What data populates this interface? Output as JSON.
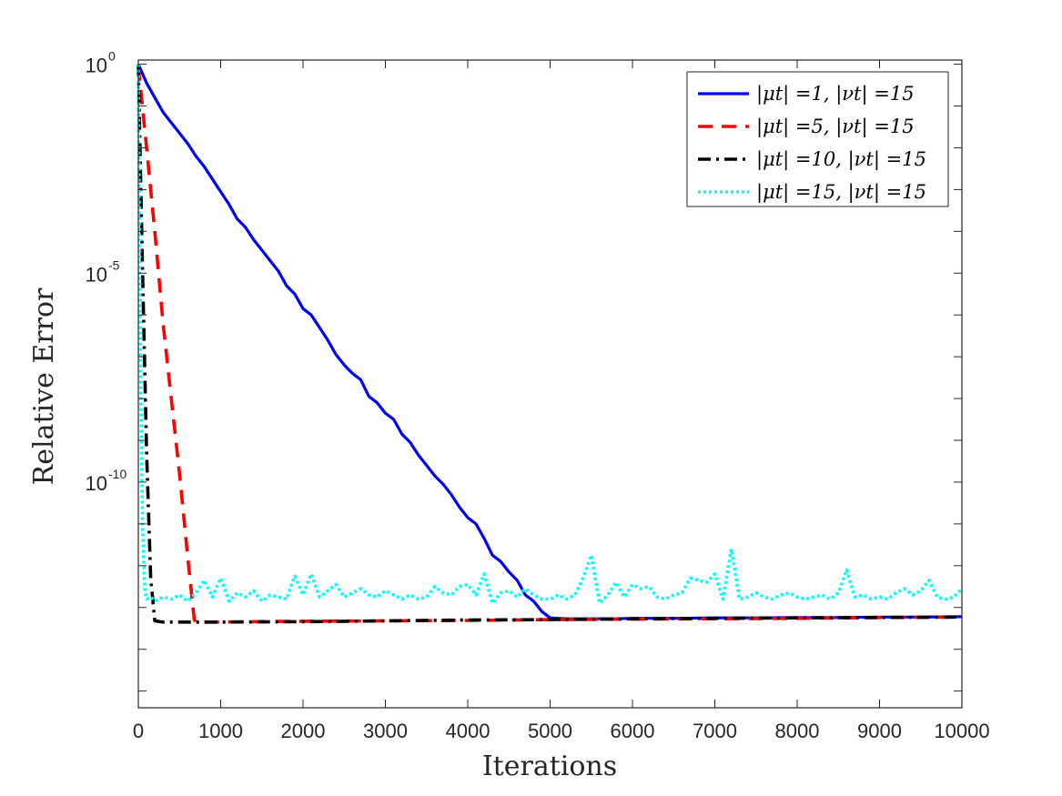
{
  "chart_data": {
    "type": "line",
    "xlabel": "Iterations",
    "ylabel": "Relative Error",
    "xlim": [
      0,
      10000
    ],
    "ylim_log10": [
      -15.4,
      0.1
    ],
    "yscale": "log",
    "x_ticks": [
      "0",
      "1000",
      "2000",
      "3000",
      "4000",
      "5000",
      "6000",
      "7000",
      "8000",
      "9000",
      "10000"
    ],
    "y_ticks": [
      {
        "base": "10",
        "exp": "0",
        "value_log10": 0
      },
      {
        "base": "10",
        "exp": "-5",
        "value_log10": -5
      },
      {
        "base": "10",
        "exp": "-10",
        "value_log10": -10
      }
    ],
    "legend_position": "top-right",
    "series": [
      {
        "name": "|μt| =1, |νt| =15",
        "color": "#0000ff",
        "dash": "solid",
        "x": [
          0,
          100,
          200,
          300,
          400,
          500,
          600,
          700,
          800,
          900,
          1000,
          1100,
          1200,
          1300,
          1400,
          1500,
          1600,
          1700,
          1800,
          1900,
          2000,
          2100,
          2200,
          2300,
          2400,
          2500,
          2600,
          2700,
          2800,
          2900,
          3000,
          3100,
          3200,
          3300,
          3400,
          3500,
          3600,
          3700,
          3800,
          3900,
          4000,
          4100,
          4200,
          4300,
          4400,
          4500,
          4600,
          4700,
          4800,
          4900,
          5000,
          5200,
          5400,
          5600,
          5800,
          6000,
          6500,
          7000,
          7500,
          8000,
          8500,
          9000,
          9500,
          10000
        ],
        "y_log10": [
          0,
          -0.45,
          -0.8,
          -1.15,
          -1.4,
          -1.65,
          -1.9,
          -2.2,
          -2.45,
          -2.75,
          -3.05,
          -3.35,
          -3.7,
          -3.9,
          -4.2,
          -4.45,
          -4.7,
          -4.95,
          -5.3,
          -5.5,
          -5.85,
          -6.0,
          -6.3,
          -6.6,
          -6.95,
          -7.2,
          -7.4,
          -7.55,
          -7.95,
          -8.1,
          -8.35,
          -8.5,
          -8.85,
          -9.05,
          -9.35,
          -9.6,
          -9.85,
          -10.05,
          -10.3,
          -10.6,
          -10.85,
          -11.0,
          -11.35,
          -11.75,
          -11.9,
          -12.15,
          -12.35,
          -12.7,
          -12.85,
          -13.1,
          -13.25,
          -13.27,
          -13.27,
          -13.27,
          -13.27,
          -13.26,
          -13.26,
          -13.25,
          -13.25,
          -13.24,
          -13.24,
          -13.23,
          -13.23,
          -13.22
        ]
      },
      {
        "name": "|μt| =5, |νt| =15",
        "color": "#ff0000",
        "dash": "dashed",
        "x": [
          0,
          100,
          200,
          300,
          400,
          500,
          600,
          680,
          700,
          1000,
          2000,
          3000,
          4000,
          5000,
          6000,
          7000,
          8000,
          9000,
          10000
        ],
        "y_log10": [
          -0.05,
          -2.0,
          -4.0,
          -6.2,
          -8.0,
          -9.8,
          -11.8,
          -13.3,
          -13.35,
          -13.35,
          -13.33,
          -13.32,
          -13.31,
          -13.29,
          -13.28,
          -13.27,
          -13.26,
          -13.24,
          -13.23
        ]
      },
      {
        "name": "|μt| =10, |νt| =15",
        "color": "#000000",
        "dash": "dashdot",
        "x": [
          0,
          50,
          100,
          150,
          200,
          300,
          1000,
          2000,
          3000,
          4000,
          5000,
          6000,
          7000,
          8000,
          9000,
          10000
        ],
        "y_log10": [
          0,
          -4.8,
          -9.3,
          -12.3,
          -13.32,
          -13.35,
          -13.35,
          -13.34,
          -13.32,
          -13.3,
          -13.29,
          -13.27,
          -13.26,
          -13.25,
          -13.24,
          -13.23
        ]
      },
      {
        "name": "|μt| =15, |νt| =15",
        "color": "#00ffff",
        "dash": "dotted",
        "x": [
          0,
          20,
          50,
          80,
          100,
          150,
          200,
          300,
          400,
          500,
          600,
          700,
          800,
          900,
          1000,
          1100,
          1200,
          1300,
          1400,
          1500,
          1600,
          1700,
          1800,
          1900,
          2000,
          2100,
          2200,
          2300,
          2400,
          2500,
          2600,
          2700,
          2800,
          2900,
          3000,
          3100,
          3200,
          3300,
          3400,
          3500,
          3600,
          3700,
          3800,
          3900,
          4000,
          4100,
          4200,
          4300,
          4400,
          4500,
          4600,
          4700,
          4800,
          4900,
          5000,
          5100,
          5200,
          5300,
          5400,
          5500,
          5600,
          5700,
          5800,
          5900,
          6000,
          6100,
          6200,
          6300,
          6400,
          6500,
          6600,
          6700,
          6800,
          6900,
          7000,
          7100,
          7200,
          7300,
          7400,
          7500,
          7600,
          7700,
          7800,
          7900,
          8000,
          8100,
          8200,
          8300,
          8400,
          8500,
          8600,
          8700,
          8800,
          8900,
          9000,
          9100,
          9200,
          9300,
          9400,
          9500,
          9600,
          9700,
          9800,
          9900,
          10000
        ],
        "y_log10": [
          0,
          -6.0,
          -11.0,
          -12.6,
          -12.8,
          -12.75,
          -12.85,
          -12.75,
          -12.8,
          -12.7,
          -12.85,
          -12.65,
          -12.35,
          -12.75,
          -12.3,
          -12.85,
          -12.65,
          -12.75,
          -12.6,
          -12.85,
          -12.7,
          -12.75,
          -12.8,
          -12.25,
          -12.7,
          -12.2,
          -12.75,
          -12.6,
          -12.45,
          -12.75,
          -12.65,
          -12.55,
          -12.7,
          -12.75,
          -12.6,
          -12.7,
          -12.8,
          -12.7,
          -12.8,
          -12.75,
          -12.5,
          -12.65,
          -12.7,
          -12.5,
          -12.45,
          -12.7,
          -12.2,
          -12.9,
          -12.65,
          -12.6,
          -12.75,
          -12.55,
          -12.7,
          -12.8,
          -12.8,
          -12.7,
          -12.8,
          -12.7,
          -12.3,
          -11.75,
          -12.9,
          -12.7,
          -12.4,
          -12.75,
          -12.45,
          -12.55,
          -12.5,
          -12.75,
          -12.8,
          -12.7,
          -12.65,
          -12.3,
          -12.35,
          -12.4,
          -12.2,
          -12.8,
          -11.6,
          -12.8,
          -12.75,
          -12.65,
          -12.75,
          -12.8,
          -12.7,
          -12.65,
          -12.75,
          -12.8,
          -12.75,
          -12.7,
          -12.8,
          -12.65,
          -12.1,
          -12.75,
          -12.7,
          -12.8,
          -12.75,
          -12.8,
          -12.65,
          -12.55,
          -12.7,
          -12.6,
          -12.35,
          -12.75,
          -12.8,
          -12.75,
          -12.55
        ]
      }
    ]
  }
}
